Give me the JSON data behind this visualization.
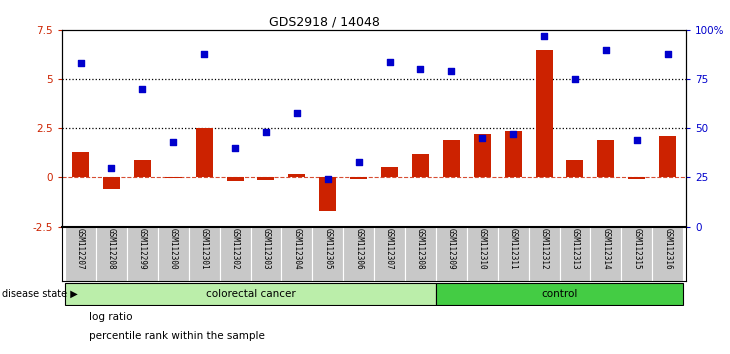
{
  "title": "GDS2918 / 14048",
  "samples": [
    "GSM112207",
    "GSM112208",
    "GSM112299",
    "GSM112300",
    "GSM112301",
    "GSM112302",
    "GSM112303",
    "GSM112304",
    "GSM112305",
    "GSM112306",
    "GSM112307",
    "GSM112308",
    "GSM112309",
    "GSM112310",
    "GSM112311",
    "GSM112312",
    "GSM112313",
    "GSM112314",
    "GSM112315",
    "GSM112316"
  ],
  "log_ratio": [
    1.3,
    -0.6,
    0.9,
    -0.05,
    2.5,
    -0.2,
    -0.15,
    0.2,
    -1.7,
    -0.1,
    0.55,
    1.2,
    1.9,
    2.2,
    2.35,
    6.5,
    0.9,
    1.9,
    -0.1,
    2.1
  ],
  "percentile_pct": [
    83,
    30,
    70,
    43,
    88,
    40,
    48,
    58,
    24,
    33,
    84,
    80,
    79,
    45,
    47,
    97,
    75,
    90,
    44,
    88
  ],
  "colorectal_count": 12,
  "control_count": 8,
  "bar_color": "#cc2200",
  "dot_color": "#0000cc",
  "left_ylim": [
    -2.5,
    7.5
  ],
  "right_ylim": [
    0,
    100
  ],
  "left_yticks": [
    -2.5,
    0.0,
    2.5,
    5.0,
    7.5
  ],
  "right_yticks": [
    0,
    25,
    50,
    75,
    100
  ],
  "hlines": [
    2.5,
    5.0
  ],
  "colorectal_color": "#bbeeaa",
  "control_color": "#44cc44",
  "bg_color": "#c8c8c8",
  "label_log": "log ratio",
  "label_pct": "percentile rank within the sample"
}
